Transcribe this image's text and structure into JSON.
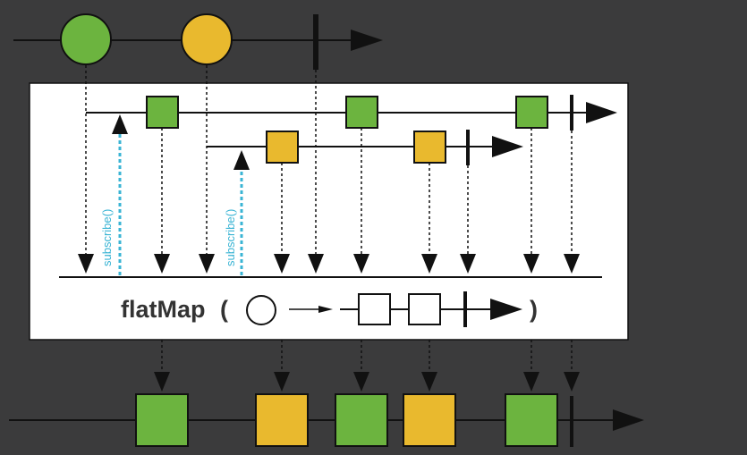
{
  "colors": {
    "background": "#3b3b3c",
    "panel": "#ffffff",
    "line": "#111111",
    "green": "#6cb43f",
    "yellow": "#e9b92e",
    "subscribe": "#3ab4d4"
  },
  "operator": {
    "name": "flatMap",
    "open_paren": "(",
    "close_paren": ")"
  },
  "subscribe_label": "subscribe()",
  "source_stream": {
    "items": [
      {
        "shape": "circle",
        "color": "green"
      },
      {
        "shape": "circle",
        "color": "yellow"
      }
    ],
    "completes": true
  },
  "inner_streams": [
    {
      "color": "green",
      "items": 3,
      "completes": true
    },
    {
      "color": "yellow",
      "items": 2,
      "completes": true
    }
  ],
  "output_stream": {
    "items": [
      {
        "shape": "square",
        "color": "green"
      },
      {
        "shape": "square",
        "color": "yellow"
      },
      {
        "shape": "square",
        "color": "green"
      },
      {
        "shape": "square",
        "color": "yellow"
      },
      {
        "shape": "square",
        "color": "green"
      }
    ],
    "completes": true
  }
}
